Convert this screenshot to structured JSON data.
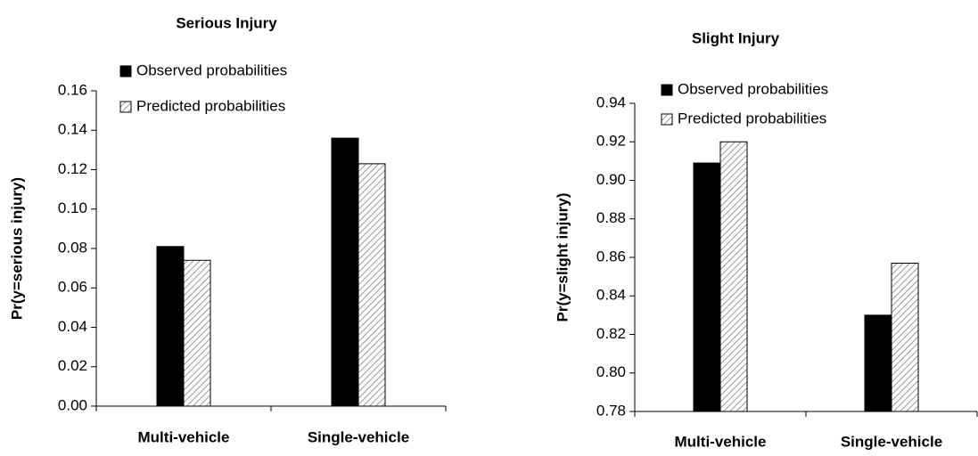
{
  "chart_data": [
    {
      "type": "bar",
      "title": "Serious Injury",
      "y_label": "Pr(y=serious injury)",
      "categories": [
        "Multi-vehicle",
        "Single-vehicle"
      ],
      "series": [
        {
          "name": "Observed probabilities",
          "color": "#000000",
          "values": [
            0.081,
            0.136
          ]
        },
        {
          "name": "Predicted probabilities",
          "color": "#999999",
          "pattern": "diagonal",
          "values": [
            0.074,
            0.123
          ]
        }
      ],
      "ylim": [
        0,
        0.16
      ],
      "yticks": [
        {
          "value": 0,
          "label": "0.00"
        },
        0.02,
        0.04,
        0.06,
        0.08,
        {
          "value": 0.1,
          "label": "0.10"
        },
        0.12,
        0.14,
        0.16
      ],
      "legend": "top"
    },
    {
      "type": "bar",
      "title": "Slight Injury",
      "y_label": "Pr(y=slight injury)",
      "categories": [
        "Multi-vehicle",
        "Single-vehicle"
      ],
      "series": [
        {
          "name": "Observed probabilities",
          "color": "#000000",
          "values": [
            0.909,
            0.83
          ]
        },
        {
          "name": "Predicted probabilities",
          "color": "#999999",
          "pattern": "diagonal",
          "values": [
            0.92,
            0.857
          ]
        }
      ],
      "ylim": [
        0.78,
        0.94
      ],
      "yticks": [
        0.78,
        {
          "value": 0.8,
          "label": "0.80"
        },
        0.82,
        0.84,
        0.86,
        0.88,
        {
          "value": 0.9,
          "label": "0.90"
        },
        0.92,
        0.94
      ],
      "legend": "top"
    }
  ]
}
